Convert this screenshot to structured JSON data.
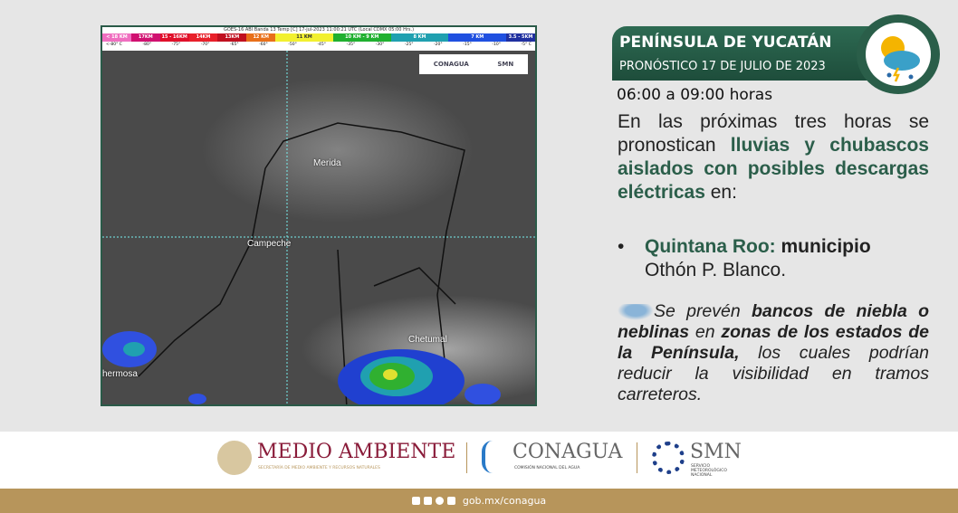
{
  "map": {
    "title": "GOES-16 ABI Banda 13 Temp [C] 17-jul-2023 11:00:21 UTC (Local CDMX 05:00 Hrs.)",
    "scale": [
      {
        "label": "< 18 KM",
        "color": "#f06fc0"
      },
      {
        "label": "17KM",
        "color": "#d01070"
      },
      {
        "label": "15 - 16KM",
        "color": "#e0102a"
      },
      {
        "label": "14KM",
        "color": "#e8202a"
      },
      {
        "label": "13KM",
        "color": "#c01020"
      },
      {
        "label": "12 KM",
        "color": "#e8701a"
      },
      {
        "label": "11 KM",
        "color": "#f2f030"
      },
      {
        "label": "10 KM - 9 KM",
        "color": "#20b030"
      },
      {
        "label": "8 KM",
        "color": "#20a0b0"
      },
      {
        "label": "7 KM",
        "color": "#2050e0"
      },
      {
        "label": "3.5 - 5KM",
        "color": "#2030a0"
      }
    ],
    "temps": [
      "<-80° C",
      "-80°",
      "-75°",
      "-70°",
      "-65°",
      "-60°",
      "-50°",
      "-45°",
      "-35°",
      "-30°",
      "-25°",
      "-20°",
      "-15°",
      "-10°",
      "-5° C"
    ],
    "logo_conagua": "CONAGUA",
    "logo_smn": "SMN",
    "cities": {
      "merida": "Merida",
      "campeche": "Campeche",
      "chetumal": "Chetumal",
      "hermosa": "hermosa"
    }
  },
  "header": {
    "region": "PENÍNSULA DE YUCATÁN",
    "date": "PRONÓSTICO 17 DE JULIO DE 2023",
    "hours": "06:00 a 09:00 horas",
    "weather_icon": "sun-cloud-storm-icon"
  },
  "forecast": {
    "p1": "En las próximas tres horas se pronostican ",
    "p1b": "lluvias y chubascos aislados con posibles descargas eléctricas",
    "p1c": " en:",
    "state": "Quintana Roo:",
    "state_b": " municipio",
    "state_c": "Othón P. Blanco.",
    "f1": "Se prevén ",
    "f2": "bancos de niebla o neblinas",
    "f3": " en ",
    "f4": "zonas de los estados de la Península,",
    "f5": " los cuales podrían reducir la visibilidad en tramos carreteros.",
    "fog_icon": "fog-icon"
  },
  "footer": {
    "medio": "MEDIO AMBIENTE",
    "medio_sub": "SECRETARÍA DE MEDIO AMBIENTE Y RECURSOS NATURALES",
    "conagua": "CONAGUA",
    "conagua_sub": "COMISIÓN NACIONAL DEL AGUA",
    "smn": "SMN",
    "smn_sub": "SERVICIO METEOROLÓGICO NACIONAL",
    "url": "gob.mx/conagua",
    "colors": {
      "medio": "#8a1c3a",
      "band": "#b7955b"
    }
  }
}
